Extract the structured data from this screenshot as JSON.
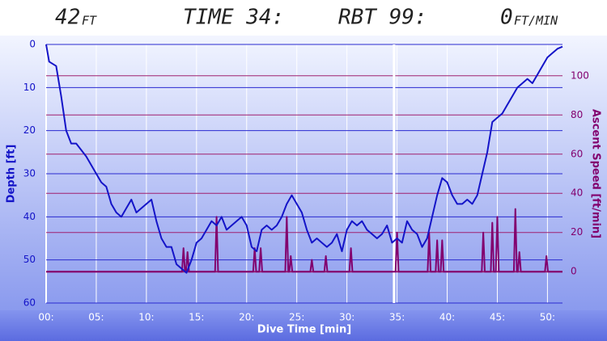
{
  "header": {
    "depth": "42",
    "depth_unit": "FT",
    "time": "TIME 34:",
    "rbt": "RBT 99:",
    "speed": "0",
    "speed_unit": "FT/MIN"
  },
  "chart_data": {
    "type": "line",
    "xlabel": "Dive Time [min]",
    "ylabel": "Depth [ft]",
    "y2label": "Ascent Speed [ft/min]",
    "xlim": [
      0,
      51.5
    ],
    "ylim": [
      0,
      60
    ],
    "y_inverted": true,
    "y2lim": [
      -16,
      116
    ],
    "xticks": [
      {
        "value": 0,
        "label": "00:"
      },
      {
        "value": 5,
        "label": "05:"
      },
      {
        "value": 10,
        "label": "10:"
      },
      {
        "value": 15,
        "label": "15:"
      },
      {
        "value": 20,
        "label": "20:"
      },
      {
        "value": 25,
        "label": "25:"
      },
      {
        "value": 30,
        "label": "30:"
      },
      {
        "value": 35,
        "label": "35:"
      },
      {
        "value": 40,
        "label": "40:"
      },
      {
        "value": 45,
        "label": "45:"
      },
      {
        "value": 50,
        "label": "50:"
      }
    ],
    "yticks": [
      0,
      10,
      20,
      30,
      40,
      50,
      60
    ],
    "y2ticks": [
      0,
      20,
      40,
      60,
      80,
      100
    ],
    "cursor_x": 34.7,
    "series": [
      {
        "name": "Depth",
        "axis": "y",
        "color": "#1414c8",
        "x": [
          0,
          0.3,
          1,
          1.5,
          2,
          2.5,
          3,
          4,
          5,
          5.5,
          6,
          6.5,
          7,
          7.5,
          8,
          8.5,
          9,
          10,
          10.5,
          11,
          11.5,
          12,
          12.5,
          13,
          13.5,
          14,
          14.5,
          15,
          15.5,
          16,
          16.5,
          17,
          17.5,
          18,
          19,
          19.5,
          20,
          20.5,
          21,
          21.5,
          22,
          22.5,
          23,
          23.5,
          24,
          24.5,
          25,
          25.5,
          26,
          26.5,
          27,
          27.5,
          28,
          28.5,
          29,
          29.5,
          30,
          30.5,
          31,
          31.5,
          32,
          32.5,
          33,
          33.5,
          34,
          34.5,
          35,
          35.5,
          36,
          36.5,
          37,
          37.5,
          38,
          38.5,
          39,
          39.5,
          40,
          40.5,
          41,
          41.5,
          42,
          42.5,
          43,
          43.5,
          44,
          44.5,
          45,
          45.5,
          46,
          46.5,
          47,
          47.5,
          48,
          48.5,
          49,
          49.5,
          50,
          50.5,
          51,
          51.5
        ],
        "values": [
          0,
          4,
          5,
          12,
          20,
          23,
          23,
          26,
          30,
          32,
          33,
          37,
          39,
          40,
          38,
          36,
          39,
          37,
          36,
          41,
          45,
          47,
          47,
          51,
          52,
          53,
          50,
          46,
          45,
          43,
          41,
          42,
          40,
          43,
          41,
          40,
          42,
          47,
          48,
          43,
          42,
          43,
          42,
          40,
          37,
          35,
          37,
          39,
          43,
          46,
          45,
          46,
          47,
          46,
          44,
          48,
          43,
          41,
          42,
          41,
          43,
          44,
          45,
          44,
          42,
          46,
          45,
          46,
          41,
          43,
          44,
          47,
          45,
          40,
          35,
          31,
          32,
          35,
          37,
          37,
          36,
          37,
          35,
          30,
          25,
          18,
          17,
          16,
          14,
          12,
          10,
          9,
          8,
          9,
          7,
          5,
          3,
          2,
          1,
          0.5
        ]
      },
      {
        "name": "Ascent Speed",
        "axis": "y2",
        "color": "#82006e",
        "x": [
          0,
          13.55,
          13.7,
          13.85,
          13.95,
          14.1,
          14.25,
          16.85,
          17,
          17.15,
          20.65,
          20.8,
          20.95,
          21.25,
          21.4,
          21.55,
          23.85,
          24,
          24.15,
          24.25,
          24.4,
          24.55,
          26.35,
          26.5,
          26.65,
          27.75,
          27.9,
          28.05,
          30.25,
          30.4,
          30.55,
          34.85,
          35,
          35.15,
          38.05,
          38.2,
          38.35,
          38.85,
          39,
          39.15,
          39.35,
          39.5,
          39.65,
          43.45,
          43.6,
          43.75,
          44.35,
          44.5,
          44.65,
          44.85,
          45,
          45.15,
          46.65,
          46.8,
          46.95,
          47.05,
          47.2,
          47.35,
          49.75,
          49.9,
          50.05,
          51.5
        ],
        "values": [
          0,
          0,
          12,
          0,
          0,
          10,
          0,
          0,
          28,
          0,
          0,
          12,
          0,
          0,
          12,
          0,
          0,
          28,
          0,
          0,
          8,
          0,
          0,
          6,
          0,
          0,
          8,
          0,
          0,
          12,
          0,
          0,
          20,
          0,
          0,
          20,
          0,
          0,
          16,
          0,
          0,
          16,
          0,
          0,
          20,
          0,
          0,
          25,
          0,
          0,
          28,
          0,
          0,
          32,
          0,
          0,
          10,
          0,
          0,
          8,
          0,
          0
        ]
      }
    ]
  }
}
